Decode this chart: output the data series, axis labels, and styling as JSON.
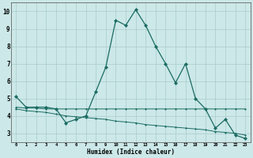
{
  "xlabel": "Humidex (Indice chaleur)",
  "background_color": "#cce8e8",
  "grid_color": "#aacccc",
  "line_color": "#1a6b62",
  "xlim": [
    -0.5,
    23.5
  ],
  "ylim": [
    2.5,
    10.5
  ],
  "xticks": [
    0,
    1,
    2,
    3,
    4,
    5,
    6,
    7,
    8,
    9,
    10,
    11,
    12,
    13,
    14,
    15,
    16,
    17,
    18,
    19,
    20,
    21,
    22,
    23
  ],
  "yticks": [
    3,
    4,
    5,
    6,
    7,
    8,
    9,
    10
  ],
  "series1_x": [
    0,
    1,
    2,
    3,
    4,
    5,
    6,
    7,
    8,
    9,
    10,
    11,
    12,
    13,
    14,
    15,
    16,
    17,
    18,
    19,
    20,
    21,
    22,
    23
  ],
  "series1_y": [
    5.1,
    4.5,
    4.5,
    4.5,
    4.4,
    3.6,
    3.8,
    4.0,
    5.4,
    6.8,
    9.5,
    9.2,
    10.1,
    9.2,
    8.0,
    7.0,
    5.9,
    7.0,
    5.0,
    4.4,
    3.3,
    3.8,
    2.9,
    2.7
  ],
  "series2_x": [
    0,
    1,
    2,
    3,
    4,
    5,
    6,
    7,
    8,
    9,
    10,
    11,
    12,
    13,
    14,
    15,
    16,
    17,
    18,
    19,
    20,
    21,
    22,
    23
  ],
  "series2_y": [
    4.5,
    4.45,
    4.45,
    4.4,
    4.4,
    4.4,
    4.4,
    4.4,
    4.4,
    4.4,
    4.4,
    4.4,
    4.4,
    4.4,
    4.4,
    4.4,
    4.4,
    4.4,
    4.4,
    4.4,
    4.4,
    4.4,
    4.4,
    4.4
  ],
  "series3_x": [
    0,
    1,
    2,
    3,
    4,
    5,
    6,
    7,
    8,
    9,
    10,
    11,
    12,
    13,
    14,
    15,
    16,
    17,
    18,
    19,
    20,
    21,
    22,
    23
  ],
  "series3_y": [
    4.4,
    4.3,
    4.25,
    4.2,
    4.1,
    4.0,
    3.95,
    3.9,
    3.85,
    3.8,
    3.7,
    3.65,
    3.6,
    3.5,
    3.45,
    3.4,
    3.35,
    3.3,
    3.25,
    3.2,
    3.1,
    3.05,
    3.0,
    2.9
  ]
}
